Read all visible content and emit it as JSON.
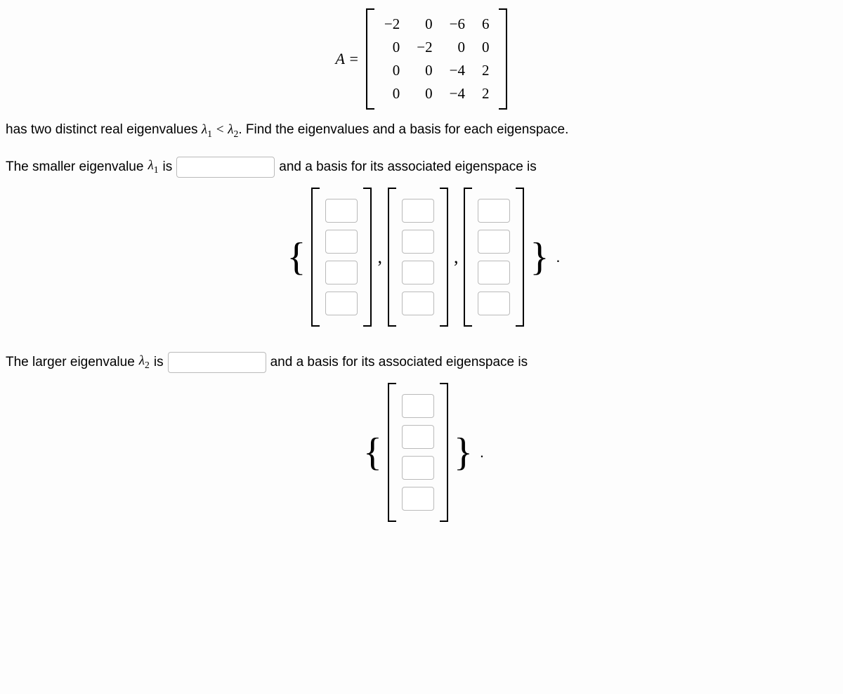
{
  "matrix": {
    "label": "A =",
    "rows": [
      [
        "−2",
        "0",
        "−6",
        "6"
      ],
      [
        "0",
        "−2",
        "0",
        "0"
      ],
      [
        "0",
        "0",
        "−4",
        "2"
      ],
      [
        "0",
        "0",
        "−4",
        "2"
      ]
    ]
  },
  "intro": {
    "prefix": "has two distinct real eigenvalues ",
    "l1": "λ",
    "s1": "1",
    "lt": " < ",
    "l2": "λ",
    "s2": "2",
    "suffix": ". Find the eigenvalues and a basis for each eigenspace."
  },
  "q1": {
    "pre": "The smaller eigenvalue ",
    "sym": "λ",
    "sub": "1",
    "mid": " is",
    "post": "and a basis for its associated eigenspace is"
  },
  "q2": {
    "pre": "The larger eigenvalue ",
    "sym": "λ",
    "sub": "2",
    "mid": " is",
    "post": "and a basis for its associated eigenspace is"
  },
  "set1": {
    "vectors": 3,
    "rows": 4
  },
  "set2": {
    "vectors": 1,
    "rows": 4
  },
  "punct": {
    "comma": ",",
    "lbrace": "{",
    "rbrace": "}",
    "period": "."
  },
  "style": {
    "body_font_size": 19,
    "math_font": "Times New Roman",
    "input_border": "#bababa",
    "input_radius": 4,
    "bracket_color": "#000000",
    "background": "#fdfdfd"
  }
}
